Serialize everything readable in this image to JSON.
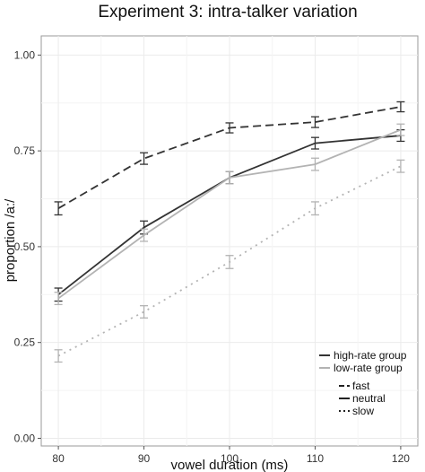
{
  "chart_data": {
    "type": "line",
    "title": "Experiment 3: intra-talker variation",
    "xlabel": "vowel duration (ms)",
    "ylabel": "proportion /a:/",
    "x": [
      80,
      90,
      100,
      110,
      120
    ],
    "xlim": [
      78,
      122
    ],
    "ylim": [
      -0.02,
      1.05
    ],
    "xticks": [
      "80",
      "90",
      "100",
      "110",
      "120"
    ],
    "yticks": [
      "0.00",
      "0.25",
      "0.50",
      "0.75",
      "1.00"
    ],
    "grid": true,
    "legend_placement": "bottom-right",
    "series": [
      {
        "group": "high-rate group",
        "rate": "fast",
        "color": "#333333",
        "dash": "fast",
        "values": [
          0.6,
          0.73,
          0.81,
          0.825,
          0.865
        ],
        "errors": [
          0.017,
          0.015,
          0.013,
          0.014,
          0.013
        ]
      },
      {
        "group": "high-rate group",
        "rate": "neutral",
        "color": "#333333",
        "dash": "neutral",
        "values": [
          0.375,
          0.55,
          0.68,
          0.77,
          0.79
        ],
        "errors": [
          0.017,
          0.017,
          0.016,
          0.015,
          0.015
        ]
      },
      {
        "group": "low-rate group",
        "rate": "neutral",
        "color": "#b3b3b3",
        "dash": "neutral",
        "values": [
          0.365,
          0.53,
          0.68,
          0.715,
          0.805
        ],
        "errors": [
          0.016,
          0.016,
          0.016,
          0.016,
          0.015
        ]
      },
      {
        "group": "low-rate group",
        "rate": "slow",
        "color": "#b3b3b3",
        "dash": "slow",
        "values": [
          0.215,
          0.33,
          0.46,
          0.6,
          0.71
        ],
        "errors": [
          0.016,
          0.016,
          0.017,
          0.017,
          0.016
        ]
      }
    ],
    "legend": {
      "groups": [
        {
          "label": "high-rate group",
          "color": "#333333"
        },
        {
          "label": "low-rate group",
          "color": "#b3b3b3"
        }
      ],
      "rates": [
        {
          "label": "fast",
          "dash": "fast"
        },
        {
          "label": "neutral",
          "dash": "neutral"
        },
        {
          "label": "slow",
          "dash": "slow"
        }
      ]
    }
  }
}
